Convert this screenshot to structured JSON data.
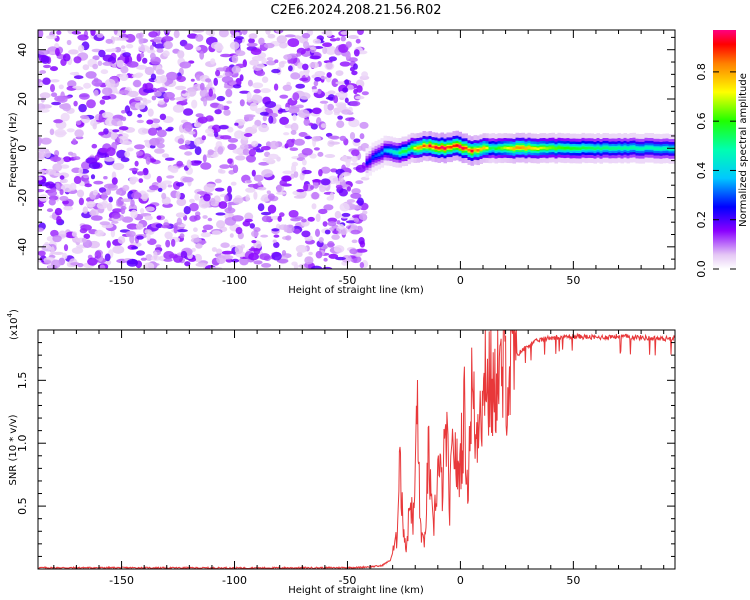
{
  "title": "C2E6.2024.208.21.56.R02",
  "chart_data": [
    {
      "type": "heatmap",
      "xlabel": "Height of straight line (km)",
      "ylabel": "Frequency (Hz)",
      "xlim": [
        -187,
        95
      ],
      "ylim": [
        -49,
        48
      ],
      "xticks": [
        "-150",
        "-100",
        "-50",
        "0",
        "50"
      ],
      "xtick_values": [
        -150,
        -100,
        -50,
        0,
        50
      ],
      "yticks": [
        "-40",
        "-20",
        "0",
        "20",
        "40"
      ],
      "ytick_values": [
        -40,
        -20,
        0,
        20,
        40
      ],
      "noise_region_x": [
        -187,
        -42
      ],
      "signal_band": {
        "x_start": -42,
        "x_end": 95,
        "center_hz": [
          {
            "x": -42,
            "hz": -6
          },
          {
            "x": -38,
            "hz": -3
          },
          {
            "x": -34,
            "hz": -1
          },
          {
            "x": -28,
            "hz": -2
          },
          {
            "x": -22,
            "hz": 0
          },
          {
            "x": -15,
            "hz": 1
          },
          {
            "x": -8,
            "hz": 0
          },
          {
            "x": -2,
            "hz": 1
          },
          {
            "x": 5,
            "hz": -1
          },
          {
            "x": 10,
            "hz": 0
          },
          {
            "x": 20,
            "hz": 0
          },
          {
            "x": 50,
            "hz": 0
          },
          {
            "x": 95,
            "hz": 0
          }
        ],
        "peak_amplitude": [
          {
            "x": -42,
            "a": 0.25
          },
          {
            "x": -35,
            "a": 0.35
          },
          {
            "x": -25,
            "a": 0.6
          },
          {
            "x": -15,
            "a": 0.95
          },
          {
            "x": -5,
            "a": 0.95
          },
          {
            "x": 5,
            "a": 0.9
          },
          {
            "x": 15,
            "a": 0.6
          },
          {
            "x": 25,
            "a": 0.85
          },
          {
            "x": 40,
            "a": 0.65
          },
          {
            "x": 60,
            "a": 0.55
          },
          {
            "x": 80,
            "a": 0.5
          },
          {
            "x": 95,
            "a": 0.5
          }
        ]
      },
      "colorbar": {
        "label": "Normalized spectral amplitude",
        "ticks": [
          "0.0",
          "0.2",
          "0.4",
          "0.6",
          "0.8"
        ],
        "tick_values": [
          0.0,
          0.2,
          0.4,
          0.6,
          0.8
        ],
        "range": [
          0,
          0.97
        ],
        "colormap": "rainbow (white-violet-blue-cyan-green-yellow-orange-red-magenta)"
      }
    },
    {
      "type": "line",
      "xlabel": "Height of straight line (km)",
      "ylabel": "SNR (10 * v/v)",
      "scale_label": "(x10",
      "scale_exponent": "4",
      "xlim": [
        -187,
        95
      ],
      "ylim": [
        0,
        19000
      ],
      "xticks": [
        "-150",
        "-100",
        "-50",
        "0",
        "50"
      ],
      "xtick_values": [
        -150,
        -100,
        -50,
        0,
        50
      ],
      "yticks": [
        "0.5",
        "1.0",
        "1.5"
      ],
      "ytick_values": [
        5000,
        10000,
        15000
      ],
      "line_color": "#e8383a",
      "series": [
        {
          "points": [
            [
              -187,
              100
            ],
            [
              -150,
              100
            ],
            [
              -100,
              80
            ],
            [
              -60,
              100
            ],
            [
              -45,
              120
            ],
            [
              -35,
              250
            ],
            [
              -31,
              700
            ],
            [
              -28,
              2500
            ],
            [
              -27,
              11000
            ],
            [
              -26,
              5000
            ],
            [
              -24,
              1500
            ],
            [
              -22,
              6000
            ],
            [
              -21,
              3000
            ],
            [
              -20,
              7500
            ],
            [
              -19,
              14000
            ],
            [
              -18,
              4000
            ],
            [
              -16,
              1500
            ],
            [
              -14,
              9500
            ],
            [
              -13,
              5000
            ],
            [
              -12,
              3000
            ],
            [
              -10,
              8000
            ],
            [
              -8,
              6500
            ],
            [
              -6,
              11500
            ],
            [
              -5,
              4500
            ],
            [
              -3,
              10500
            ],
            [
              -1,
              7000
            ],
            [
              0,
              9000
            ],
            [
              2,
              12500
            ],
            [
              3,
              6000
            ],
            [
              5,
              14500
            ],
            [
              7,
              10000
            ],
            [
              9,
              15500
            ],
            [
              10,
              11500
            ],
            [
              11,
              18000
            ],
            [
              12,
              14000
            ],
            [
              14,
              15000
            ],
            [
              15,
              12000
            ],
            [
              16,
              17000
            ],
            [
              18,
              14500
            ],
            [
              20,
              16000
            ],
            [
              22,
              15500
            ],
            [
              25,
              17000
            ],
            [
              30,
              17800
            ],
            [
              35,
              18200
            ],
            [
              40,
              18400
            ],
            [
              50,
              18500
            ],
            [
              60,
              18400
            ],
            [
              70,
              18500
            ],
            [
              80,
              18400
            ],
            [
              90,
              18300
            ],
            [
              95,
              18400
            ]
          ]
        }
      ]
    }
  ]
}
